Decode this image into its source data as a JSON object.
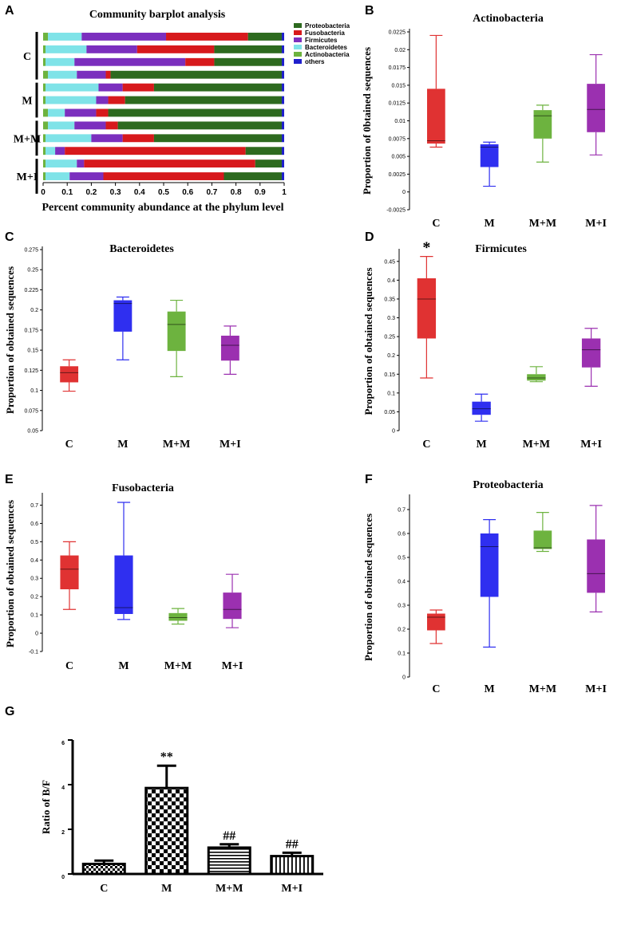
{
  "panels": {
    "A": "A",
    "B": "B",
    "C": "C",
    "D": "D",
    "E": "E",
    "F": "F",
    "G": "G"
  },
  "colors": {
    "Proteobacteria": "#2d6a1f",
    "Fusobacteria": "#d7191c",
    "Firmicutes": "#7b2fbe",
    "Bacteroidetes": "#7fe3e8",
    "Actinobacteria": "#6db33f",
    "others": "#1f1fcc",
    "box_C": "#e03232",
    "box_M": "#2f2ff0",
    "box_MM": "#6db33f",
    "box_MI": "#9b30b0"
  },
  "chart_data": [
    {
      "type": "bar",
      "orientation": "horizontal-stacked",
      "title": "Community barplot analysis",
      "xlabel": "Percent community abundance at the phylum level",
      "xlim": [
        0,
        1
      ],
      "xticks": [
        "0",
        "0.1",
        "0.2",
        "0.3",
        "0.4",
        "0.5",
        "0.6",
        "0.7",
        "0.8",
        "0.9",
        "1"
      ],
      "groups": [
        "C",
        "M",
        "M+M",
        "M+I"
      ],
      "group_sizes": [
        4,
        3,
        3,
        3
      ],
      "legend": [
        "Proteobacteria",
        "Fusobacteria",
        "Firmicutes",
        "Bacteroidetes",
        "Actinobacteria",
        "others"
      ],
      "stack_order": [
        "Actinobacteria",
        "Bacteroidetes",
        "Firmicutes",
        "Fusobacteria",
        "Proteobacteria",
        "others"
      ],
      "samples": [
        [
          0.02,
          0.14,
          0.35,
          0.34,
          0.14,
          0.01
        ],
        [
          0.01,
          0.17,
          0.21,
          0.32,
          0.28,
          0.01
        ],
        [
          0.01,
          0.12,
          0.46,
          0.12,
          0.28,
          0.01
        ],
        [
          0.02,
          0.12,
          0.12,
          0.02,
          0.71,
          0.01
        ],
        [
          0.01,
          0.22,
          0.1,
          0.13,
          0.53,
          0.01
        ],
        [
          0.01,
          0.21,
          0.05,
          0.07,
          0.65,
          0.01
        ],
        [
          0.02,
          0.07,
          0.13,
          0.05,
          0.72,
          0.01
        ],
        [
          0.02,
          0.11,
          0.13,
          0.05,
          0.68,
          0.01
        ],
        [
          0.01,
          0.19,
          0.13,
          0.13,
          0.53,
          0.01
        ],
        [
          0.01,
          0.04,
          0.04,
          0.75,
          0.15,
          0.01
        ],
        [
          0.01,
          0.13,
          0.03,
          0.71,
          0.11,
          0.01
        ],
        [
          0.01,
          0.1,
          0.14,
          0.5,
          0.24,
          0.01
        ]
      ]
    },
    {
      "type": "box",
      "title": "Actinobacteria",
      "ylabel": "Proportion of 0btained sequences",
      "ylim": [
        -0.0025,
        0.0225
      ],
      "yticks": [
        "-0.0025",
        "0",
        "0.0025",
        "0.005",
        "0.0075",
        "0.01",
        "0.0125",
        "0.015",
        "0.0175",
        "0.02",
        "0.0225"
      ],
      "categories": [
        "C",
        "M",
        "M+M",
        "M+I"
      ],
      "boxes": [
        {
          "min": 0.0063,
          "q1": 0.0068,
          "median": 0.0072,
          "q3": 0.0145,
          "max": 0.022
        },
        {
          "min": 0.0008,
          "q1": 0.0035,
          "median": 0.0063,
          "q3": 0.0067,
          "max": 0.007
        },
        {
          "min": 0.0042,
          "q1": 0.0075,
          "median": 0.0107,
          "q3": 0.0115,
          "max": 0.0122
        },
        {
          "min": 0.0052,
          "q1": 0.0084,
          "median": 0.0116,
          "q3": 0.0152,
          "max": 0.0193
        }
      ]
    },
    {
      "type": "box",
      "title": "Bacteroidetes",
      "ylabel": "Proportion of obtained sequences",
      "ylim": [
        0.05,
        0.275
      ],
      "yticks": [
        "0.05",
        "0.075",
        "0.1",
        "0.125",
        "0.15",
        "0.175",
        "0.2",
        "0.225",
        "0.25",
        "0.275"
      ],
      "categories": [
        "C",
        "M",
        "M+M",
        "M+I"
      ],
      "boxes": [
        {
          "min": 0.099,
          "q1": 0.11,
          "median": 0.122,
          "q3": 0.13,
          "max": 0.138
        },
        {
          "min": 0.138,
          "q1": 0.173,
          "median": 0.208,
          "q3": 0.212,
          "max": 0.216
        },
        {
          "min": 0.117,
          "q1": 0.149,
          "median": 0.182,
          "q3": 0.198,
          "max": 0.212
        },
        {
          "min": 0.12,
          "q1": 0.137,
          "median": 0.156,
          "q3": 0.168,
          "max": 0.18
        }
      ]
    },
    {
      "type": "box",
      "title": "Firmicutes",
      "ylabel": "Proportion of obtained sequences",
      "ylim": [
        0,
        0.475
      ],
      "yticks": [
        "0",
        "0.05",
        "0.1",
        "0.15",
        "0.2",
        "0.25",
        "0.3",
        "0.35",
        "0.4",
        "0.45"
      ],
      "categories": [
        "C",
        "M",
        "M+M",
        "M+I"
      ],
      "annotations": [
        "*",
        "",
        "",
        ""
      ],
      "boxes": [
        {
          "min": 0.14,
          "q1": 0.245,
          "median": 0.35,
          "q3": 0.405,
          "max": 0.463
        },
        {
          "min": 0.025,
          "q1": 0.042,
          "median": 0.058,
          "q3": 0.077,
          "max": 0.097
        },
        {
          "min": 0.13,
          "q1": 0.133,
          "median": 0.14,
          "q3": 0.15,
          "max": 0.17
        },
        {
          "min": 0.118,
          "q1": 0.168,
          "median": 0.215,
          "q3": 0.245,
          "max": 0.272
        }
      ]
    },
    {
      "type": "box",
      "title": "Fusobacteria",
      "ylabel": "Proportion of obtained sequences",
      "ylim": [
        -0.1,
        0.75
      ],
      "yticks": [
        "-0.1",
        "0",
        "0.1",
        "0.2",
        "0.3",
        "0.4",
        "0.5",
        "0.6",
        "0.7"
      ],
      "categories": [
        "C",
        "M",
        "M+M",
        "M+I"
      ],
      "boxes": [
        {
          "min": 0.13,
          "q1": 0.24,
          "median": 0.35,
          "q3": 0.425,
          "max": 0.5
        },
        {
          "min": 0.075,
          "q1": 0.105,
          "median": 0.14,
          "q3": 0.425,
          "max": 0.715
        },
        {
          "min": 0.05,
          "q1": 0.068,
          "median": 0.085,
          "q3": 0.11,
          "max": 0.135
        },
        {
          "min": 0.03,
          "q1": 0.078,
          "median": 0.13,
          "q3": 0.222,
          "max": 0.322
        }
      ]
    },
    {
      "type": "box",
      "title": "Proteobacteria",
      "ylabel": "Proportion of obtained sequences",
      "ylim": [
        0,
        0.75
      ],
      "yticks": [
        "0",
        "0.1",
        "0.2",
        "0.3",
        "0.4",
        "0.5",
        "0.6",
        "0.7"
      ],
      "categories": [
        "C",
        "M",
        "M+M",
        "M+I"
      ],
      "boxes": [
        {
          "min": 0.14,
          "q1": 0.195,
          "median": 0.25,
          "q3": 0.265,
          "max": 0.28
        },
        {
          "min": 0.125,
          "q1": 0.335,
          "median": 0.545,
          "q3": 0.6,
          "max": 0.658
        },
        {
          "min": 0.525,
          "q1": 0.535,
          "median": 0.54,
          "q3": 0.612,
          "max": 0.688
        },
        {
          "min": 0.272,
          "q1": 0.352,
          "median": 0.432,
          "q3": 0.575,
          "max": 0.717
        }
      ]
    },
    {
      "type": "bar",
      "ylabel": "Ratio of B/F",
      "ylim": [
        0,
        6
      ],
      "yticks": [
        "0",
        "2",
        "4",
        "6"
      ],
      "categories": [
        "C",
        "M",
        "M+M",
        "M+I"
      ],
      "values": [
        0.45,
        3.85,
        1.18,
        0.8
      ],
      "errors": [
        0.15,
        1.0,
        0.15,
        0.15
      ],
      "annotations": [
        "",
        "**",
        "##",
        "##"
      ]
    }
  ]
}
